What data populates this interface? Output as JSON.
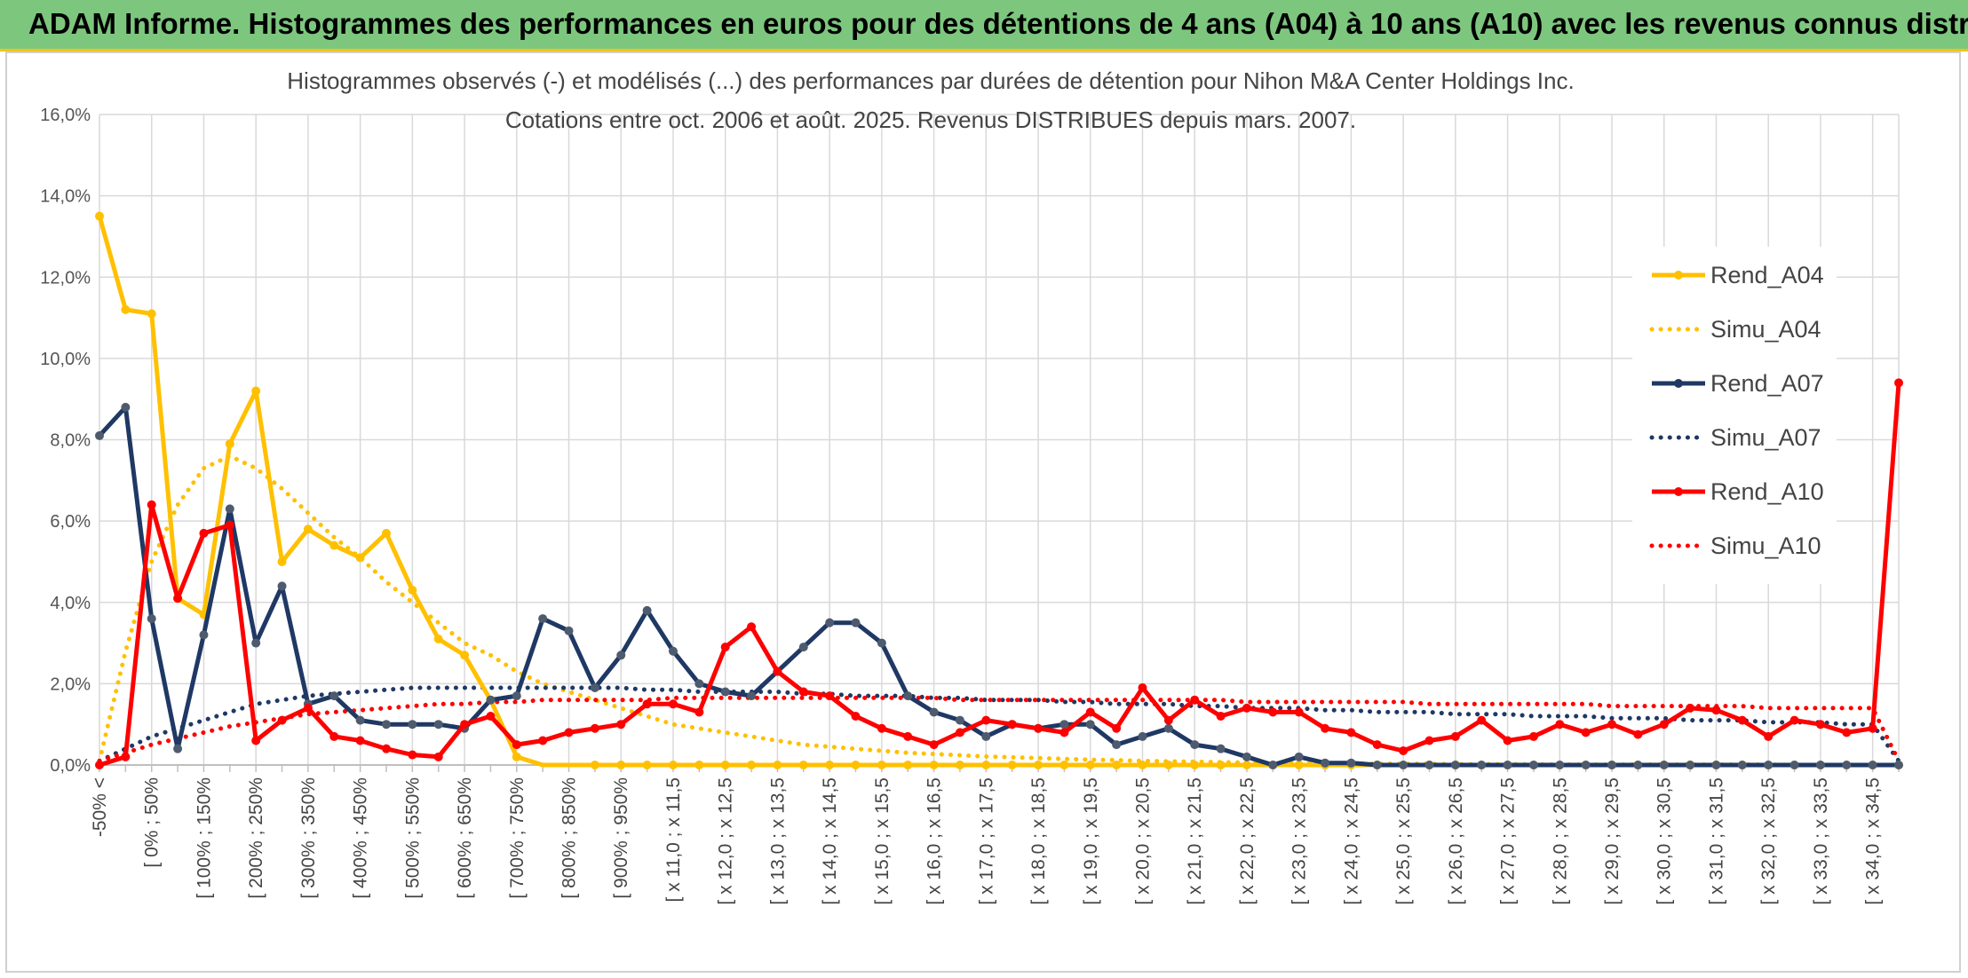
{
  "header": {
    "title": "ADAM Informe. Histogrammes des performances en euros pour des détentions de 4 ans (A04) à 10 ans (A10) avec les revenus connus distribués"
  },
  "colors": {
    "header_bg": "#7dc67e",
    "header_border": "#f0c419",
    "a04": "#ffc000",
    "a07": "#1f3864",
    "a10": "#ff0000",
    "grid": "#d9d9d9"
  },
  "chart_data": {
    "type": "line",
    "title": "Histogrammes observés (-) et modélisés (...) des performances par durées de détention pour Nihon M&A Center Holdings Inc.",
    "subtitle": "Cotations entre oct. 2006 et août. 2025. Revenus DISTRIBUES depuis mars. 2007.",
    "ylim": [
      0,
      16
    ],
    "y_ticks": [
      "0,0%",
      "2,0%",
      "4,0%",
      "6,0%",
      "8,0%",
      "10,0%",
      "12,0%",
      "14,0%",
      "16,0%"
    ],
    "x_count": 70,
    "x_tick_labels": [
      {
        "i": 0,
        "label": "-50% <"
      },
      {
        "i": 2,
        "label": "[ 0% ; 50%"
      },
      {
        "i": 4,
        "label": "[ 100% ; 150%"
      },
      {
        "i": 6,
        "label": "[ 200% ; 250%"
      },
      {
        "i": 8,
        "label": "[ 300% ; 350%"
      },
      {
        "i": 10,
        "label": "[ 400% ; 450%"
      },
      {
        "i": 12,
        "label": "[ 500% ; 550%"
      },
      {
        "i": 14,
        "label": "[ 600% ; 650%"
      },
      {
        "i": 16,
        "label": "[ 700% ; 750%"
      },
      {
        "i": 18,
        "label": "[ 800% ; 850%"
      },
      {
        "i": 20,
        "label": "[ 900% ; 950%"
      },
      {
        "i": 22,
        "label": "[ x 11,0 ; x 11,5"
      },
      {
        "i": 24,
        "label": "[ x 12,0 ; x 12,5"
      },
      {
        "i": 26,
        "label": "[ x 13,0 ; x 13,5"
      },
      {
        "i": 28,
        "label": "[ x 14,0 ; x 14,5"
      },
      {
        "i": 30,
        "label": "[ x 15,0 ; x 15,5"
      },
      {
        "i": 32,
        "label": "[ x 16,0 ; x 16,5"
      },
      {
        "i": 34,
        "label": "[ x 17,0 ; x 17,5"
      },
      {
        "i": 36,
        "label": "[ x 18,0 ; x 18,5"
      },
      {
        "i": 38,
        "label": "[ x 19,0 ; x 19,5"
      },
      {
        "i": 40,
        "label": "[ x 20,0 ; x 20,5"
      },
      {
        "i": 42,
        "label": "[ x 21,0 ; x 21,5"
      },
      {
        "i": 44,
        "label": "[ x 22,0 ; x 22,5"
      },
      {
        "i": 46,
        "label": "[ x 23,0 ; x 23,5"
      },
      {
        "i": 48,
        "label": "[ x 24,0 ; x 24,5"
      },
      {
        "i": 50,
        "label": "[ x 25,0 ; x 25,5"
      },
      {
        "i": 52,
        "label": "[ x 26,0 ; x 26,5"
      },
      {
        "i": 54,
        "label": "[ x 27,0 ; x 27,5"
      },
      {
        "i": 56,
        "label": "[ x 28,0 ; x 28,5"
      },
      {
        "i": 58,
        "label": "[ x 29,0 ; x 29,5"
      },
      {
        "i": 60,
        "label": "[ x 30,0 ; x 30,5"
      },
      {
        "i": 62,
        "label": "[ x 31,0 ; x 31,5"
      },
      {
        "i": 64,
        "label": "[ x 32,0 ; x 32,5"
      },
      {
        "i": 66,
        "label": "[ x 33,0 ; x 33,5"
      },
      {
        "i": 68,
        "label": "[ x 34,0 ; x 34,5"
      }
    ],
    "grid": true,
    "legend_position": "right",
    "series": [
      {
        "name": "Rend_A04",
        "style": "solid",
        "color": "#ffc000",
        "values": [
          13.5,
          11.2,
          11.1,
          4.1,
          3.7,
          7.9,
          9.2,
          5.0,
          5.8,
          5.4,
          5.1,
          5.7,
          4.3,
          3.1,
          2.7,
          1.6,
          0.2,
          0,
          0,
          0,
          0,
          0,
          0,
          0,
          0,
          0,
          0,
          0,
          0,
          0,
          0,
          0,
          0,
          0,
          0,
          0,
          0,
          0,
          0,
          0,
          0,
          0,
          0,
          0,
          0,
          0,
          0,
          0,
          0,
          0,
          0,
          0,
          0,
          0,
          0,
          0,
          0,
          0,
          0,
          0,
          0,
          0,
          0,
          0,
          0,
          0,
          0,
          0,
          0,
          0
        ]
      },
      {
        "name": "Simu_A04",
        "style": "dotted",
        "color": "#ffc000",
        "values": [
          0.1,
          2.8,
          5.0,
          6.4,
          7.3,
          7.6,
          7.3,
          6.8,
          6.2,
          5.6,
          5.1,
          4.5,
          4.0,
          3.5,
          3.0,
          2.7,
          2.3,
          2.0,
          1.8,
          1.6,
          1.4,
          1.2,
          1.0,
          0.9,
          0.8,
          0.7,
          0.6,
          0.5,
          0.45,
          0.4,
          0.35,
          0.3,
          0.27,
          0.24,
          0.21,
          0.19,
          0.17,
          0.15,
          0.13,
          0.12,
          0.1,
          0.09,
          0.08,
          0.07,
          0.06,
          0.05,
          0.05,
          0.04,
          0.04,
          0.03,
          0.03,
          0.03,
          0.02,
          0.02,
          0.02,
          0.02,
          0.01,
          0.01,
          0.01,
          0.01,
          0.01,
          0.01,
          0.01,
          0.01,
          0.01,
          0,
          0,
          0,
          0,
          0
        ]
      },
      {
        "name": "Rend_A07",
        "style": "solid",
        "color": "#1f3864",
        "values": [
          8.1,
          8.8,
          3.6,
          0.4,
          3.2,
          6.3,
          3.0,
          4.4,
          1.5,
          1.7,
          1.1,
          1.0,
          1.0,
          1.0,
          0.9,
          1.6,
          1.7,
          3.6,
          3.3,
          1.9,
          2.7,
          3.8,
          2.8,
          2.0,
          1.8,
          1.7,
          2.3,
          2.9,
          3.5,
          3.5,
          3.0,
          1.7,
          1.3,
          1.1,
          0.7,
          1.0,
          0.9,
          1.0,
          1.0,
          0.5,
          0.7,
          0.9,
          0.5,
          0.4,
          0.2,
          0.0,
          0.2,
          0.05,
          0.05,
          0,
          0,
          0,
          0,
          0,
          0,
          0,
          0,
          0,
          0,
          0,
          0,
          0,
          0,
          0,
          0,
          0,
          0,
          0,
          0,
          0
        ]
      },
      {
        "name": "Simu_A07",
        "style": "dotted",
        "color": "#1f3864",
        "values": [
          0.1,
          0.4,
          0.7,
          0.9,
          1.1,
          1.3,
          1.5,
          1.6,
          1.7,
          1.75,
          1.8,
          1.85,
          1.9,
          1.9,
          1.9,
          1.9,
          1.9,
          1.9,
          1.9,
          1.9,
          1.9,
          1.85,
          1.85,
          1.8,
          1.8,
          1.8,
          1.8,
          1.75,
          1.75,
          1.7,
          1.7,
          1.7,
          1.65,
          1.65,
          1.6,
          1.6,
          1.6,
          1.55,
          1.55,
          1.5,
          1.5,
          1.5,
          1.45,
          1.45,
          1.4,
          1.4,
          1.4,
          1.35,
          1.35,
          1.3,
          1.3,
          1.3,
          1.25,
          1.25,
          1.25,
          1.2,
          1.2,
          1.2,
          1.15,
          1.15,
          1.15,
          1.1,
          1.1,
          1.1,
          1.05,
          1.05,
          1.05,
          1.0,
          1.0,
          0.1
        ]
      },
      {
        "name": "Rend_A10",
        "style": "solid",
        "color": "#ff0000",
        "values": [
          0.0,
          0.2,
          6.4,
          4.1,
          5.7,
          5.9,
          0.6,
          1.1,
          1.4,
          0.7,
          0.6,
          0.4,
          0.25,
          0.2,
          1.0,
          1.2,
          0.5,
          0.6,
          0.8,
          0.9,
          1.0,
          1.5,
          1.5,
          1.3,
          2.9,
          3.4,
          2.3,
          1.8,
          1.7,
          1.2,
          0.9,
          0.7,
          0.5,
          0.8,
          1.1,
          1.0,
          0.9,
          0.8,
          1.3,
          0.9,
          1.9,
          1.1,
          1.6,
          1.2,
          1.4,
          1.3,
          1.3,
          0.9,
          0.8,
          0.5,
          0.35,
          0.6,
          0.7,
          1.1,
          0.6,
          0.7,
          1.0,
          0.8,
          1.0,
          0.75,
          1.0,
          1.4,
          1.35,
          1.1,
          0.7,
          1.1,
          1.0,
          0.8,
          0.9,
          9.4
        ]
      },
      {
        "name": "Simu_A10",
        "style": "dotted",
        "color": "#ff0000",
        "values": [
          0.1,
          0.3,
          0.5,
          0.65,
          0.8,
          0.95,
          1.05,
          1.15,
          1.25,
          1.3,
          1.35,
          1.4,
          1.45,
          1.5,
          1.5,
          1.55,
          1.55,
          1.6,
          1.6,
          1.6,
          1.6,
          1.6,
          1.65,
          1.65,
          1.65,
          1.65,
          1.65,
          1.65,
          1.65,
          1.65,
          1.65,
          1.65,
          1.65,
          1.6,
          1.6,
          1.6,
          1.6,
          1.6,
          1.6,
          1.6,
          1.6,
          1.6,
          1.6,
          1.6,
          1.55,
          1.55,
          1.55,
          1.55,
          1.55,
          1.55,
          1.55,
          1.5,
          1.5,
          1.5,
          1.5,
          1.5,
          1.5,
          1.5,
          1.45,
          1.45,
          1.45,
          1.45,
          1.45,
          1.45,
          1.4,
          1.4,
          1.4,
          1.4,
          1.4,
          0.1
        ]
      }
    ]
  }
}
